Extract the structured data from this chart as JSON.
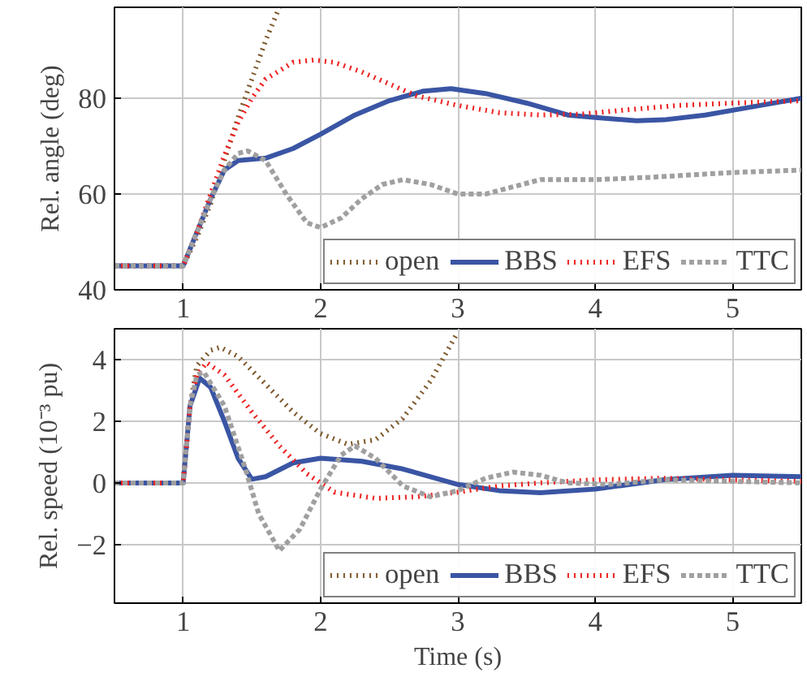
{
  "chart_data": [
    {
      "type": "line",
      "ylabel": "Rel. angle (deg)",
      "xlim": [
        0.5,
        5.5
      ],
      "ylim": [
        40,
        99
      ],
      "xticks": [
        1,
        2,
        3,
        4,
        5
      ],
      "yticks": [
        40,
        60,
        80
      ],
      "grid": true,
      "legend": "bottom right",
      "series": [
        {
          "name": "open",
          "color": "#7f5a2e",
          "line_style": "dotted",
          "x": [
            0.5,
            1,
            1.1,
            1.2,
            1.3,
            1.4,
            1.5,
            1.6,
            1.7
          ],
          "values": [
            45,
            45,
            51,
            58,
            67,
            76,
            84,
            92,
            99
          ]
        },
        {
          "name": "BBS",
          "color": "#3a55a4",
          "line_style": "solid",
          "x": [
            0.5,
            1,
            1.1,
            1.2,
            1.3,
            1.4,
            1.6,
            1.8,
            2,
            2.25,
            2.5,
            2.75,
            2.95,
            3.2,
            3.5,
            3.8,
            4.0,
            4.3,
            4.5,
            4.8,
            5.1,
            5.5
          ],
          "values": [
            45,
            45,
            52,
            59,
            65,
            67,
            67.5,
            69.5,
            72.5,
            76.5,
            79.5,
            81.5,
            82,
            81,
            79,
            76.5,
            76,
            75.3,
            75.5,
            76.5,
            78,
            80
          ]
        },
        {
          "name": "EFS",
          "color": "#ee2222",
          "line_style": "dotted",
          "x": [
            0.5,
            1,
            1.1,
            1.2,
            1.3,
            1.4,
            1.5,
            1.6,
            1.8,
            1.95,
            2.1,
            2.3,
            2.5,
            2.7,
            3.0,
            3.3,
            3.6,
            3.9,
            4.2,
            4.6,
            5.0,
            5.5
          ],
          "values": [
            45,
            45,
            52,
            60,
            68,
            75,
            80,
            84,
            87.5,
            88,
            87.5,
            85.5,
            83,
            80.5,
            78.5,
            77,
            76.5,
            76.7,
            77.5,
            78.5,
            79,
            79.5
          ]
        },
        {
          "name": "TTC",
          "color": "#a0a0a0",
          "line_style": "dashed",
          "x": [
            0.5,
            1,
            1.1,
            1.2,
            1.3,
            1.4,
            1.47,
            1.6,
            1.75,
            1.9,
            2.0,
            2.15,
            2.3,
            2.45,
            2.6,
            2.8,
            3.0,
            3.2,
            3.4,
            3.6,
            4.0,
            4.4,
            5,
            5.5
          ],
          "values": [
            45,
            45,
            52,
            59,
            65,
            68.5,
            69,
            67,
            60,
            54,
            53,
            55,
            59,
            62,
            63,
            62,
            60,
            60,
            61.5,
            63,
            63,
            63.5,
            64.5,
            65
          ]
        }
      ]
    },
    {
      "type": "line",
      "xlabel": "Time (s)",
      "ylabel": "Rel. speed (10⁻³ pu)",
      "xlim": [
        0.5,
        5.5
      ],
      "ylim": [
        -3.9,
        5
      ],
      "xticks": [
        1,
        2,
        3,
        4,
        5
      ],
      "yticks": [
        {
          "value": -2,
          "label": "−2"
        },
        0,
        2,
        4
      ],
      "grid": true,
      "legend": "bottom right",
      "series": [
        {
          "name": "open",
          "color": "#7f5a2e",
          "line_style": "dotted",
          "x": [
            0.5,
            1,
            1.05,
            1.1,
            1.2,
            1.27,
            1.4,
            1.6,
            1.8,
            2.0,
            2.2,
            2.4,
            2.6,
            2.8,
            3.0
          ],
          "values": [
            0,
            0,
            2.5,
            3.8,
            4.3,
            4.4,
            4.1,
            3.2,
            2.3,
            1.6,
            1.25,
            1.4,
            2.1,
            3.3,
            4.9
          ]
        },
        {
          "name": "BBS",
          "color": "#3a55a4",
          "line_style": "solid",
          "x": [
            0.5,
            1,
            1.05,
            1.12,
            1.2,
            1.3,
            1.4,
            1.5,
            1.6,
            1.8,
            2.0,
            2.3,
            2.6,
            3.0,
            3.3,
            3.6,
            4.0,
            4.5,
            5.0,
            5.5
          ],
          "values": [
            0,
            0,
            2.5,
            3.4,
            3.1,
            2.0,
            0.8,
            0.12,
            0.2,
            0.65,
            0.8,
            0.7,
            0.45,
            -0.05,
            -0.25,
            -0.32,
            -0.2,
            0.1,
            0.25,
            0.2
          ]
        },
        {
          "name": "EFS",
          "color": "#ee2222",
          "line_style": "dotted",
          "x": [
            0.5,
            1,
            1.05,
            1.1,
            1.17,
            1.3,
            1.5,
            1.7,
            1.9,
            2.1,
            2.4,
            2.7,
            3.0,
            3.3,
            3.6,
            4.0,
            4.5,
            5.0,
            5.5
          ],
          "values": [
            0,
            0,
            2.5,
            3.5,
            3.9,
            3.5,
            2.3,
            1.2,
            0.3,
            -0.3,
            -0.5,
            -0.45,
            -0.3,
            -0.1,
            0.0,
            0.1,
            0.15,
            0.1,
            0.05
          ]
        },
        {
          "name": "TTC",
          "color": "#a0a0a0",
          "line_style": "dashed",
          "x": [
            0.5,
            1,
            1.05,
            1.1,
            1.15,
            1.3,
            1.45,
            1.55,
            1.7,
            1.85,
            2.0,
            2.15,
            2.25,
            2.4,
            2.6,
            2.8,
            3.0,
            3.2,
            3.4,
            3.6,
            3.8,
            4.1,
            4.5,
            5.0,
            5.5
          ],
          "values": [
            0,
            0,
            2.5,
            3.5,
            3.6,
            2.5,
            0.5,
            -1.0,
            -2.2,
            -1.5,
            -0.2,
            0.9,
            1.2,
            0.8,
            -0.1,
            -0.45,
            -0.25,
            0.15,
            0.35,
            0.25,
            0.0,
            -0.05,
            0.1,
            0.05,
            0.0
          ]
        }
      ]
    }
  ]
}
